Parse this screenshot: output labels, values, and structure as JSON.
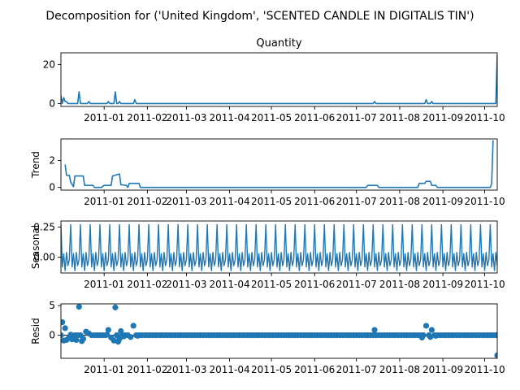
{
  "figure": {
    "suptitle": "Decomposition for ('United Kingdom', 'SCENTED CANDLE IN DIGITALIS TIN')"
  },
  "chart_data": [
    {
      "type": "line",
      "title": "Quantity",
      "ylabel": "",
      "xlabel": "",
      "xlim": [
        "2010-12-01",
        "2011-10-10"
      ],
      "ylim": [
        -1.5,
        26
      ],
      "yticks": [
        0,
        20
      ],
      "xticks": [
        "2011-01",
        "2011-02",
        "2011-03",
        "2011-04",
        "2011-05",
        "2011-06",
        "2011-07",
        "2011-08",
        "2011-09",
        "2011-10"
      ],
      "color": "#1f77b4",
      "series": [
        {
          "points": [
            [
              "2010-12-01",
              4
            ],
            [
              "2010-12-02",
              0
            ],
            [
              "2010-12-03",
              3
            ],
            [
              "2010-12-04",
              1
            ],
            [
              "2010-12-05",
              1
            ],
            [
              "2010-12-06",
              0
            ],
            [
              "2010-12-13",
              0
            ],
            [
              "2010-12-14",
              6
            ],
            [
              "2010-12-15",
              0
            ],
            [
              "2010-12-20",
              0
            ],
            [
              "2010-12-21",
              1
            ],
            [
              "2010-12-22",
              0
            ],
            [
              "2011-01-03",
              0
            ],
            [
              "2011-01-04",
              1
            ],
            [
              "2011-01-05",
              0
            ],
            [
              "2011-01-08",
              0
            ],
            [
              "2011-01-09",
              6
            ],
            [
              "2011-01-10",
              0
            ],
            [
              "2011-01-11",
              0
            ],
            [
              "2011-01-12",
              1
            ],
            [
              "2011-01-13",
              0
            ],
            [
              "2011-01-22",
              0
            ],
            [
              "2011-01-23",
              2
            ],
            [
              "2011-01-24",
              0
            ],
            [
              "2011-07-13",
              0
            ],
            [
              "2011-07-14",
              1
            ],
            [
              "2011-07-15",
              0
            ],
            [
              "2011-08-19",
              0
            ],
            [
              "2011-08-20",
              2
            ],
            [
              "2011-08-21",
              0
            ],
            [
              "2011-08-23",
              0
            ],
            [
              "2011-08-24",
              1
            ],
            [
              "2011-08-25",
              0
            ],
            [
              "2011-10-09",
              0
            ],
            [
              "2011-10-10",
              25
            ]
          ]
        }
      ]
    },
    {
      "type": "line",
      "title": "",
      "ylabel": "Trend",
      "xlabel": "",
      "xlim": [
        "2010-12-01",
        "2011-10-10"
      ],
      "ylim": [
        -0.2,
        3.6
      ],
      "yticks": [
        0,
        2
      ],
      "xticks": [
        "2011-01",
        "2011-02",
        "2011-03",
        "2011-04",
        "2011-05",
        "2011-06",
        "2011-07",
        "2011-08",
        "2011-09",
        "2011-10"
      ],
      "color": "#1f77b4",
      "series": [
        {
          "points": [
            [
              "2010-12-04",
              1.7
            ],
            [
              "2010-12-05",
              0.9
            ],
            [
              "2010-12-07",
              0.9
            ],
            [
              "2010-12-08",
              0.4
            ],
            [
              "2010-12-10",
              0.05
            ],
            [
              "2010-12-11",
              0.85
            ],
            [
              "2010-12-17",
              0.85
            ],
            [
              "2010-12-18",
              0.15
            ],
            [
              "2010-12-24",
              0.15
            ],
            [
              "2010-12-25",
              0.0
            ],
            [
              "2010-12-30",
              0.0
            ],
            [
              "2011-01-01",
              0.15
            ],
            [
              "2011-01-06",
              0.15
            ],
            [
              "2011-01-07",
              0.85
            ],
            [
              "2011-01-12",
              1.0
            ],
            [
              "2011-01-13",
              0.2
            ],
            [
              "2011-01-17",
              0.15
            ],
            [
              "2011-01-18",
              0.0
            ],
            [
              "2011-01-19",
              0.3
            ],
            [
              "2011-01-26",
              0.3
            ],
            [
              "2011-01-27",
              0.0
            ],
            [
              "2011-07-08",
              0.0
            ],
            [
              "2011-07-09",
              0.15
            ],
            [
              "2011-07-16",
              0.15
            ],
            [
              "2011-07-17",
              0.0
            ],
            [
              "2011-08-14",
              0.0
            ],
            [
              "2011-08-15",
              0.3
            ],
            [
              "2011-08-19",
              0.3
            ],
            [
              "2011-08-20",
              0.45
            ],
            [
              "2011-08-23",
              0.45
            ],
            [
              "2011-08-24",
              0.15
            ],
            [
              "2011-08-27",
              0.15
            ],
            [
              "2011-08-28",
              0.0
            ],
            [
              "2011-10-05",
              0.0
            ],
            [
              "2011-10-06",
              0.3
            ],
            [
              "2011-10-07",
              3.5
            ]
          ]
        }
      ]
    },
    {
      "type": "line",
      "title": "",
      "ylabel": "Seasonal",
      "xlabel": "",
      "xlim": [
        "2010-12-01",
        "2011-10-10"
      ],
      "ylim": [
        -0.13,
        0.3
      ],
      "yticks": [
        -0.0,
        0.25
      ],
      "ytick_labels": [
        "0.00",
        "0.25"
      ],
      "xticks": [
        "2011-01",
        "2011-02",
        "2011-03",
        "2011-04",
        "2011-05",
        "2011-06",
        "2011-07",
        "2011-08",
        "2011-09",
        "2011-10"
      ],
      "color": "#1f77b4",
      "series": [
        {
          "period_days": 7,
          "start": "2010-12-01",
          "end": "2011-10-10",
          "pattern": [
            0.27,
            -0.08,
            0.03,
            -0.11,
            0.04,
            -0.07,
            -0.02
          ]
        }
      ]
    },
    {
      "type": "scatter",
      "title": "",
      "ylabel": "Resid",
      "xlabel": "",
      "xlim": [
        "2010-12-01",
        "2011-10-10"
      ],
      "ylim": [
        -3.9,
        5.3
      ],
      "yticks": [
        -0.0,
        5
      ],
      "ytick_labels": [
        "0",
        "5"
      ],
      "xticks": [
        "2011-01",
        "2011-02",
        "2011-03",
        "2011-04",
        "2011-05",
        "2011-06",
        "2011-07",
        "2011-08",
        "2011-09",
        "2011-10"
      ],
      "baseline": 0,
      "color": "#1f77b4",
      "series": [
        {
          "default_value": 0.0,
          "start": "2010-12-01",
          "end": "2011-10-10",
          "step_days": 2,
          "points": [
            [
              "2010-12-02",
              2.2
            ],
            [
              "2010-12-03",
              -0.9
            ],
            [
              "2010-12-04",
              1.2
            ],
            [
              "2010-12-05",
              -0.8
            ],
            [
              "2010-12-07",
              -0.3
            ],
            [
              "2010-12-08",
              0.1
            ],
            [
              "2010-12-09",
              -0.7
            ],
            [
              "2010-12-12",
              -0.8
            ],
            [
              "2010-12-14",
              4.8
            ],
            [
              "2010-12-16",
              -1.0
            ],
            [
              "2010-12-17",
              -0.6
            ],
            [
              "2010-12-19",
              0.6
            ],
            [
              "2010-12-21",
              0.3
            ],
            [
              "2011-01-03",
              0.1
            ],
            [
              "2011-01-04",
              0.9
            ],
            [
              "2011-01-06",
              -0.4
            ],
            [
              "2011-01-08",
              -0.9
            ],
            [
              "2011-01-09",
              4.7
            ],
            [
              "2011-01-11",
              -1.1
            ],
            [
              "2011-01-12",
              -0.6
            ],
            [
              "2011-01-13",
              0.7
            ],
            [
              "2011-01-15",
              -0.2
            ],
            [
              "2011-01-20",
              -0.3
            ],
            [
              "2011-01-22",
              1.6
            ],
            [
              "2011-01-25",
              -0.1
            ],
            [
              "2011-07-14",
              0.9
            ],
            [
              "2011-08-17",
              -0.4
            ],
            [
              "2011-08-20",
              1.6
            ],
            [
              "2011-08-23",
              -0.3
            ],
            [
              "2011-08-24",
              0.9
            ],
            [
              "2011-08-27",
              -0.1
            ],
            [
              "2011-10-10",
              -3.4
            ]
          ]
        }
      ]
    }
  ]
}
